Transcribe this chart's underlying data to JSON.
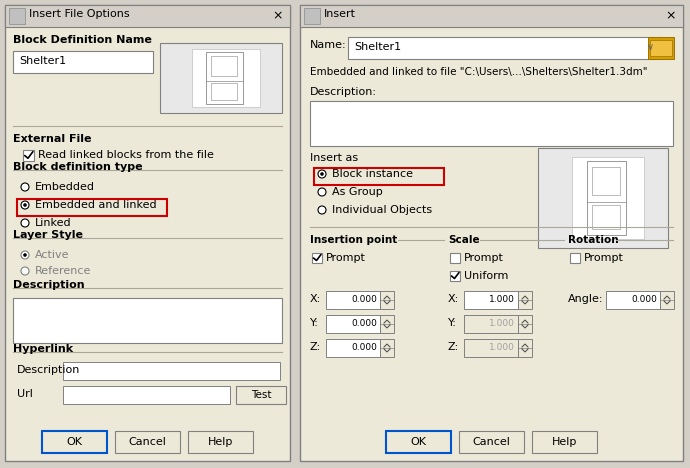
{
  "bg_color": "#d4d0c8",
  "dialog_bg": "#ece9d8",
  "input_bg": "#ffffff",
  "border_dark": "#808080",
  "border_light": "#ffffff",
  "text_color": "#000000",
  "gray_text": "#808080",
  "red_box_color": "#cc0000",
  "blue_btn_border": "#0055cc",
  "separator_color": "#aca899",
  "title_bar_bg": "#0a246a",
  "title_text_color": "#ffffff",
  "btn_bg": "#ece9d8",
  "folder_icon_color": "#f0c040",
  "left": {
    "title": "Insert File Options",
    "block_def_name_label": "Block Definition Name",
    "name_field_text": "Shelter1",
    "external_file_label": "External File",
    "read_linked_text": "Read linked blocks from the file",
    "block_def_type_label": "Block definition type",
    "radio_embedded": "Embedded",
    "radio_embedded_linked": "Embedded and linked",
    "radio_linked": "Linked",
    "layer_style_label": "Layer Style",
    "radio_active": "Active",
    "radio_reference": "Reference",
    "description_label": "Description",
    "hyperlink_label": "Hyperlink",
    "hyp_desc_label": "Description",
    "hyp_url_label": "Url",
    "test_btn": "Test",
    "ok_btn": "OK",
    "cancel_btn": "Cancel",
    "help_btn": "Help"
  },
  "right": {
    "title": "Insert",
    "name_label": "Name:",
    "name_value": "Shelter1",
    "embedded_text": "Embedded and linked to file \"C:\\Users\\...\\Shelters\\Shelter1.3dm\"",
    "description_label": "Description:",
    "insert_as_label": "Insert as",
    "radio_block": "Block instance",
    "radio_group": "As Group",
    "radio_individual": "Individual Objects",
    "insertion_point_label": "Insertion point",
    "scale_label": "Scale",
    "rotation_label": "Rotation",
    "prompt_label": "Prompt",
    "uniform_label": "Uniform",
    "angle_label": "Angle:",
    "x_label": "X:",
    "y_label": "Y:",
    "z_label": "Z:",
    "x_val": "0.000",
    "y_val": "0.000",
    "z_val": "0.000",
    "sx_val": "1.000",
    "sy_val": "1.000",
    "sz_val": "1.000",
    "angle_val": "0.000",
    "ok_btn": "OK",
    "cancel_btn": "Cancel",
    "help_btn": "Help"
  }
}
